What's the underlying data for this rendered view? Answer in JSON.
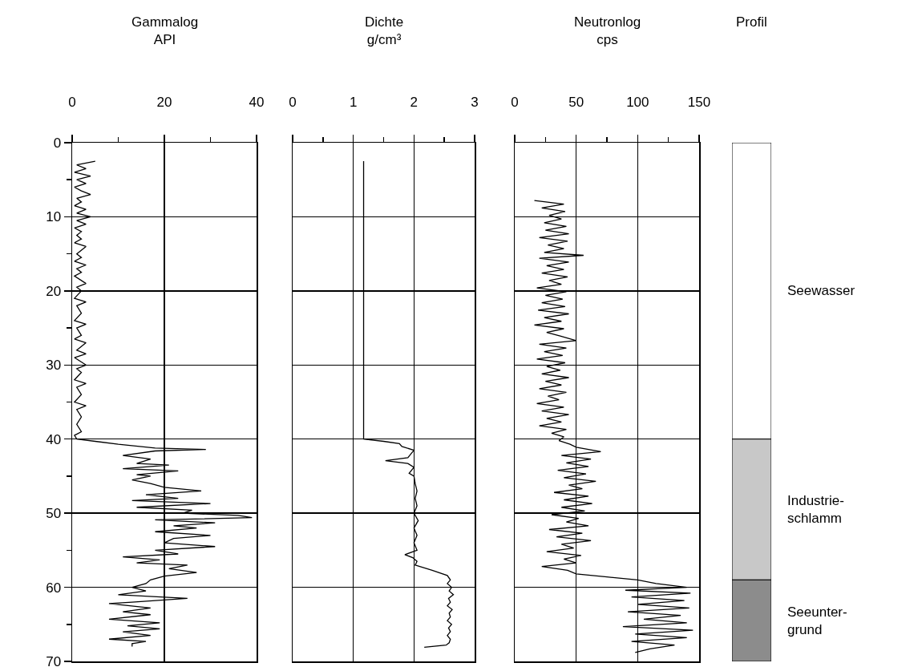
{
  "chart_data": [
    {
      "type": "line",
      "xlabel": "Gammalog\nAPI",
      "orientation": "horizontal",
      "xlim": [
        0,
        40
      ],
      "xticks": [
        0,
        {
          "value": 10,
          "label": null
        },
        20,
        {
          "value": 30,
          "label": null
        },
        40
      ],
      "ylim": [
        70,
        0
      ],
      "yticks": [
        0,
        {
          "value": 5,
          "label": null
        },
        10,
        {
          "value": 15,
          "label": null
        },
        20,
        {
          "value": 25,
          "label": null
        },
        30,
        {
          "value": 35,
          "label": null
        },
        40,
        {
          "value": 45,
          "label": null
        },
        50,
        {
          "value": 55,
          "label": null
        },
        60,
        {
          "value": 65,
          "label": null
        },
        70
      ],
      "grid": true,
      "series": [
        {
          "color": "#000000",
          "x": [
            2.5,
            3,
            3.5,
            4,
            4.5,
            5,
            5.5,
            6,
            6.5,
            7,
            7.5,
            8,
            8.5,
            9,
            9.5,
            10,
            10.5,
            11,
            11.5,
            12,
            12.5,
            13,
            13.5,
            14,
            15,
            15.5,
            16,
            16.5,
            17,
            17.5,
            18,
            19,
            19.5,
            20,
            21,
            21.5,
            22,
            23,
            24,
            24.5,
            25,
            26,
            26.5,
            27,
            28,
            28.5,
            29,
            30,
            30.5,
            31,
            32,
            32.5,
            33,
            34,
            35,
            35.5,
            36,
            37,
            38,
            39,
            39.5,
            40,
            40.3,
            40.7,
            41.2,
            41.4,
            41.6,
            42.2,
            42.7,
            43.3,
            43.5,
            44,
            44.3,
            44.8,
            45,
            45.5,
            46,
            46.5,
            47,
            47.5,
            48,
            48.3,
            48.7,
            49.2,
            49.6,
            50,
            50.3,
            50.6,
            50.9,
            51.3,
            51.7,
            52,
            52.5,
            53,
            53.4,
            54,
            54.5,
            55,
            55.5,
            55.9,
            56.3,
            56.7,
            57,
            57.5,
            58,
            58.5,
            59,
            59.5,
            60,
            60.5,
            61,
            61.5,
            62,
            62.2,
            62.8,
            63.3,
            63.7,
            64.3,
            64.8,
            65.2,
            65.6,
            66,
            66.5,
            67,
            67.3,
            67.6,
            68
          ],
          "values": [
            5,
            1,
            3,
            0.5,
            4,
            1,
            3,
            0.5,
            2,
            4,
            1,
            2,
            0.5,
            3,
            1,
            4,
            1,
            3,
            0.5,
            2,
            1,
            2,
            0.5,
            3,
            1,
            2,
            0.5,
            3,
            1,
            2,
            0.5,
            3,
            1,
            2,
            0.5,
            3,
            1,
            2,
            0.5,
            3,
            1,
            2,
            0.5,
            3,
            1,
            3,
            0.5,
            3,
            1,
            2,
            0.5,
            3,
            1,
            2,
            0.5,
            3,
            1,
            2,
            1,
            2,
            0.5,
            1,
            5,
            10,
            18,
            29,
            18,
            11,
            17,
            14,
            21,
            11,
            23,
            14,
            17,
            13,
            17,
            20,
            28,
            16,
            23,
            13,
            30,
            14,
            26,
            24,
            36,
            39,
            18,
            31,
            22,
            27,
            18,
            30,
            22,
            20,
            31,
            18,
            23,
            11,
            19,
            14,
            25,
            21,
            27,
            20,
            17,
            16,
            13,
            16,
            10,
            25,
            13,
            8,
            17,
            11,
            17,
            8,
            19,
            12,
            19,
            11,
            17,
            8,
            16,
            13,
            13
          ]
        }
      ]
    },
    {
      "type": "line",
      "xlabel": "Dichte\ng/cm³",
      "orientation": "horizontal",
      "xlim": [
        0,
        3
      ],
      "xticks": [
        0,
        {
          "value": 0.5,
          "label": null
        },
        1,
        {
          "value": 1.5,
          "label": null
        },
        2,
        {
          "value": 2.5,
          "label": null
        },
        3
      ],
      "ylim": [
        70,
        0
      ],
      "yticks": [
        0,
        10,
        20,
        30,
        40,
        50,
        60,
        70
      ],
      "tick_labels": "x",
      "grid": true,
      "series": [
        {
          "color": "#000000",
          "x": [
            2.5,
            5,
            10,
            15,
            20,
            25,
            30,
            35,
            40,
            40.3,
            40.6,
            41,
            41.5,
            42,
            42.5,
            42.9,
            43.3,
            43.8,
            44.6,
            45,
            46,
            47,
            48,
            49,
            50,
            51,
            52,
            53,
            54,
            55,
            55.6,
            56,
            56.5,
            57,
            57.7,
            58.4,
            59,
            59.5,
            60,
            60.5,
            61,
            61.5,
            62,
            62.5,
            63,
            63.5,
            64,
            64.5,
            65,
            65.5,
            66,
            66.5,
            67,
            67.5,
            67.8,
            68.1
          ],
          "values": [
            1.17,
            1.17,
            1.17,
            1.17,
            1.17,
            1.17,
            1.17,
            1.17,
            1.17,
            1.5,
            1.76,
            1.8,
            2.0,
            1.95,
            1.9,
            1.53,
            1.9,
            2.0,
            1.92,
            2.0,
            2.02,
            2.05,
            2.02,
            2.05,
            2.0,
            2.07,
            2.0,
            2.05,
            2.0,
            2.05,
            1.85,
            1.98,
            2.05,
            2.02,
            2.3,
            2.55,
            2.6,
            2.55,
            2.62,
            2.58,
            2.65,
            2.57,
            2.6,
            2.55,
            2.63,
            2.58,
            2.6,
            2.55,
            2.62,
            2.57,
            2.6,
            2.55,
            2.6,
            2.58,
            2.53,
            2.17
          ]
        }
      ]
    },
    {
      "type": "line",
      "xlabel": "Neutronlog\ncps",
      "orientation": "horizontal",
      "xlim": [
        0,
        150
      ],
      "xticks": [
        0,
        {
          "value": 25,
          "label": null
        },
        50,
        {
          "value": 75,
          "label": null
        },
        100,
        {
          "value": 125,
          "label": null
        },
        150
      ],
      "ylim": [
        70,
        0
      ],
      "yticks": [
        0,
        10,
        20,
        30,
        40,
        50,
        60,
        70
      ],
      "tick_labels": "x",
      "grid": true,
      "series": [
        {
          "color": "#000000",
          "x": [
            7.8,
            8.3,
            8.8,
            9.3,
            9.8,
            10.3,
            10.8,
            11.3,
            11.8,
            12.3,
            12.8,
            13.3,
            13.8,
            14.3,
            14.8,
            15.2,
            15.6,
            16.1,
            16.6,
            17.1,
            17.6,
            18.1,
            18.6,
            19.1,
            19.6,
            20.1,
            20.6,
            21.1,
            21.6,
            22.1,
            22.6,
            23.1,
            23.6,
            24.1,
            24.6,
            25.1,
            25.6,
            26.1,
            26.7,
            27.2,
            27.7,
            28.2,
            28.7,
            29.2,
            29.7,
            30.2,
            30.7,
            31.2,
            31.7,
            32.2,
            32.7,
            33.2,
            33.7,
            34.2,
            34.7,
            35.2,
            35.7,
            36.2,
            36.7,
            37.2,
            37.7,
            38.2,
            38.7,
            39.2,
            39.7,
            40.2,
            40.7,
            41.1,
            41.7,
            42.2,
            42.7,
            43.2,
            43.7,
            44.2,
            44.7,
            45.2,
            45.7,
            46.2,
            46.7,
            47.2,
            47.7,
            48.2,
            48.7,
            49.2,
            49.7,
            50.2,
            50.7,
            51.2,
            51.7,
            52.2,
            52.7,
            53.2,
            53.7,
            54.2,
            54.7,
            55.2,
            55.7,
            56.2,
            56.7,
            57.2,
            57.7,
            58.2,
            58.6,
            59,
            59.5,
            60,
            60.4,
            60.8,
            61.3,
            61.8,
            62.3,
            62.8,
            63.3,
            63.8,
            64.3,
            64.8,
            65.3,
            65.8,
            66.3,
            66.8,
            67.3,
            67.8,
            68.3,
            68.8
          ],
          "values": [
            16,
            40,
            22,
            41,
            28,
            38,
            24,
            42,
            25,
            44,
            20,
            43,
            27,
            40,
            24,
            56,
            20,
            44,
            26,
            40,
            22,
            43,
            28,
            38,
            18,
            42,
            25,
            39,
            22,
            41,
            19,
            44,
            24,
            38,
            16,
            40,
            26,
            37,
            50,
            20,
            42,
            24,
            39,
            18,
            41,
            26,
            37,
            22,
            44,
            25,
            38,
            20,
            42,
            27,
            36,
            18,
            40,
            22,
            44,
            26,
            38,
            20,
            42,
            30,
            40,
            36,
            45,
            50,
            70,
            38,
            62,
            42,
            60,
            35,
            58,
            40,
            66,
            44,
            55,
            32,
            60,
            40,
            63,
            38,
            57,
            30,
            52,
            42,
            60,
            28,
            55,
            34,
            62,
            38,
            48,
            26,
            54,
            40,
            50,
            22,
            43,
            50,
            75,
            100,
            115,
            140,
            90,
            143,
            95,
            138,
            100,
            142,
            92,
            135,
            105,
            140,
            88,
            145,
            98,
            140,
            95,
            130,
            110,
            98
          ]
        }
      ]
    },
    {
      "type": "bar",
      "xlabel": "Profil",
      "stacked": true,
      "categories": [
        null
      ],
      "ylim": [
        70,
        0
      ],
      "tick_labels": false,
      "grid": false,
      "series": [
        {
          "name": "Seewasser",
          "color": "#ffffff",
          "values": [
            40
          ]
        },
        {
          "name": "Industrie-\nschlamm",
          "color": "#c8c8c8",
          "values": [
            19
          ]
        },
        {
          "name": "Seeunter-\ngrund",
          "color": "#8c8c8c",
          "values": [
            11
          ]
        }
      ]
    }
  ]
}
